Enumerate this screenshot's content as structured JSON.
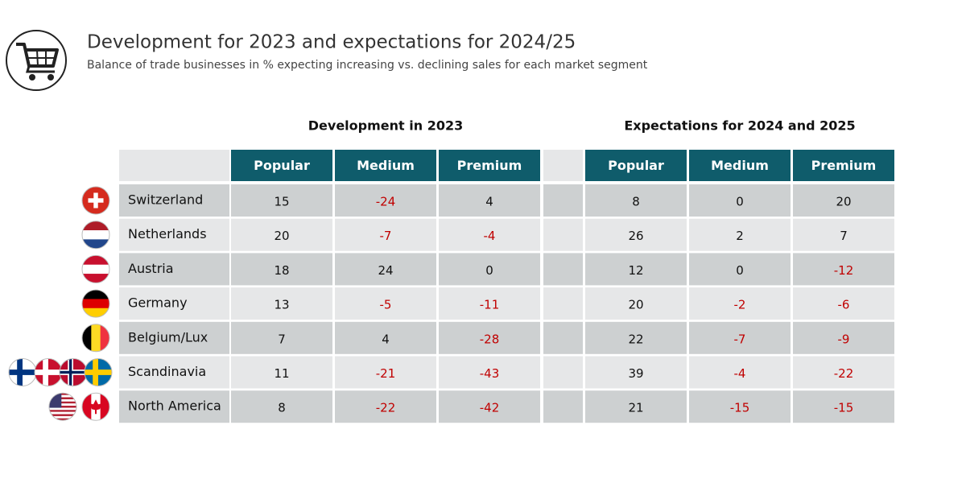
{
  "header": {
    "title": "Development for 2023 and expectations for 2024/25",
    "subtitle": "Balance of trade businesses in % expecting increasing vs. declining sales for each market segment"
  },
  "table": {
    "groups": [
      "Development in 2023",
      "Expectations for 2024 and 2025"
    ],
    "columns": [
      [
        "Popular",
        "Medium",
        "Premium"
      ],
      [
        "Popular",
        "Medium",
        "Premium"
      ]
    ],
    "rows": [
      {
        "name": "Switzerland",
        "values": [
          [
            15,
            -24,
            4
          ],
          [
            8,
            0,
            20
          ]
        ]
      },
      {
        "name": "Netherlands",
        "values": [
          [
            20,
            -7,
            -4
          ],
          [
            26,
            2,
            7
          ]
        ]
      },
      {
        "name": "Austria",
        "values": [
          [
            18,
            24,
            0
          ],
          [
            12,
            0,
            -12
          ]
        ]
      },
      {
        "name": "Germany",
        "values": [
          [
            13,
            -5,
            -11
          ],
          [
            20,
            -2,
            -6
          ]
        ]
      },
      {
        "name": "Belgium/Lux",
        "values": [
          [
            7,
            4,
            -28
          ],
          [
            22,
            -7,
            -9
          ]
        ]
      },
      {
        "name": "Scandinavia",
        "values": [
          [
            11,
            -21,
            -43
          ],
          [
            39,
            -4,
            -22
          ]
        ]
      },
      {
        "name": "North America",
        "values": [
          [
            8,
            -22,
            -42
          ],
          [
            21,
            -15,
            -15
          ]
        ]
      }
    ]
  }
}
